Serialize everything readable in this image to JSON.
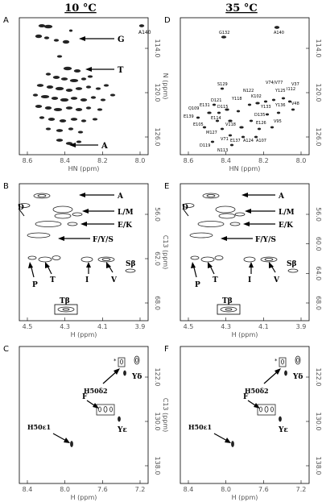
{
  "columns": [
    {
      "id": "left",
      "title": "10 °C"
    },
    {
      "id": "right",
      "title": "35 °C"
    }
  ],
  "panels": [
    {
      "id": "A",
      "label": "A",
      "column": "left",
      "row": 0,
      "xlabel": "HN (ppm)",
      "ylabel": "N (ppm)",
      "xticks": [
        "8.6",
        "8.4",
        "8.2",
        "8.0"
      ],
      "yticks": [
        "114.0",
        "120.0",
        "126.0"
      ]
    },
    {
      "id": "D",
      "label": "D",
      "column": "right",
      "row": 0,
      "xlabel": "HN (ppm)",
      "ylabel": "N (ppm)",
      "xticks": [
        "8.6",
        "8.4",
        "8.2",
        "8.0"
      ],
      "yticks": [
        "114.0",
        "120.0",
        "126.0"
      ]
    },
    {
      "id": "B",
      "label": "B",
      "column": "left",
      "row": 1,
      "xlabel": "H (ppm)",
      "ylabel": "C13 (ppm)",
      "xticks": [
        "4.5",
        "4.3",
        "4.1",
        "3.9"
      ],
      "yticks": [
        "56.0",
        "62.0",
        "68.0"
      ]
    },
    {
      "id": "E",
      "label": "E",
      "column": "right",
      "row": 1,
      "xlabel": "H (ppm)",
      "ylabel": "C13 (ppm)",
      "xticks": [
        "4.5",
        "4.3",
        "4.1",
        "3.9"
      ],
      "yticks": [
        "56.0",
        "60.0",
        "64.0",
        "68.0"
      ]
    },
    {
      "id": "C",
      "label": "C",
      "column": "left",
      "row": 2,
      "xlabel": "H (ppm)",
      "ylabel": "C13 (ppm)",
      "xticks": [
        "8.4",
        "8.0",
        "7.6",
        "7.2"
      ],
      "yticks": [
        "122.0",
        "130.0",
        "138.0"
      ]
    },
    {
      "id": "F",
      "label": "F",
      "column": "right",
      "row": 2,
      "xlabel": "H (ppm)",
      "ylabel": "C13 (ppm)",
      "xticks": [
        "8.4",
        "8.0",
        "7.6",
        "7.2"
      ],
      "yticks": [
        "122.0",
        "130.0",
        "138.0"
      ]
    }
  ],
  "annotations": {
    "A": [
      {
        "text": "A140",
        "small": true
      },
      {
        "text": "G"
      },
      {
        "text": "T"
      },
      {
        "text": "A"
      }
    ],
    "D": [
      {
        "text": "G132"
      },
      {
        "text": "A140"
      },
      {
        "text": "S129"
      },
      {
        "text": "N122"
      },
      {
        "text": "K102"
      },
      {
        "text": "V74/V77"
      },
      {
        "text": "Y125"
      },
      {
        "text": "I112"
      },
      {
        "text": "V37"
      },
      {
        "text": "V48"
      },
      {
        "text": "Y136"
      },
      {
        "text": "Y133"
      },
      {
        "text": "D121"
      },
      {
        "text": "Q109"
      },
      {
        "text": "E131"
      },
      {
        "text": "D115"
      },
      {
        "text": "Y118"
      },
      {
        "text": "E139"
      },
      {
        "text": "E114"
      },
      {
        "text": "D135"
      },
      {
        "text": "E126"
      },
      {
        "text": "E105"
      },
      {
        "text": "V118"
      },
      {
        "text": "V95"
      },
      {
        "text": "M127"
      },
      {
        "text": "V71"
      },
      {
        "text": "A124"
      },
      {
        "text": "A107"
      },
      {
        "text": "D119"
      },
      {
        "text": "E137"
      },
      {
        "text": "N113"
      }
    ],
    "B": [
      {
        "text": "A"
      },
      {
        "text": "D"
      },
      {
        "text": "L/M"
      },
      {
        "text": "E/K"
      },
      {
        "text": "F/Y/S"
      },
      {
        "text": "Sβ"
      },
      {
        "text": "P"
      },
      {
        "text": "T"
      },
      {
        "text": "I"
      },
      {
        "text": "V"
      },
      {
        "text": "Tβ"
      }
    ],
    "E": [
      {
        "text": "A"
      },
      {
        "text": "D"
      },
      {
        "text": "L/M"
      },
      {
        "text": "E/K"
      },
      {
        "text": "F/Y/S"
      },
      {
        "text": "Sβ"
      },
      {
        "text": "P"
      },
      {
        "text": "T"
      },
      {
        "text": "I"
      },
      {
        "text": "V"
      },
      {
        "text": "Tβ"
      }
    ],
    "C": [
      {
        "text": "*"
      },
      {
        "text": "Yδ"
      },
      {
        "text": "H50δ2"
      },
      {
        "text": "F"
      },
      {
        "text": "Yε"
      },
      {
        "text": "H50ε1"
      }
    ],
    "F": [
      {
        "text": "*"
      },
      {
        "text": "Yδ"
      },
      {
        "text": "H50δ2"
      },
      {
        "text": "F"
      },
      {
        "text": "Yε"
      },
      {
        "text": "H50ε1"
      }
    ]
  }
}
